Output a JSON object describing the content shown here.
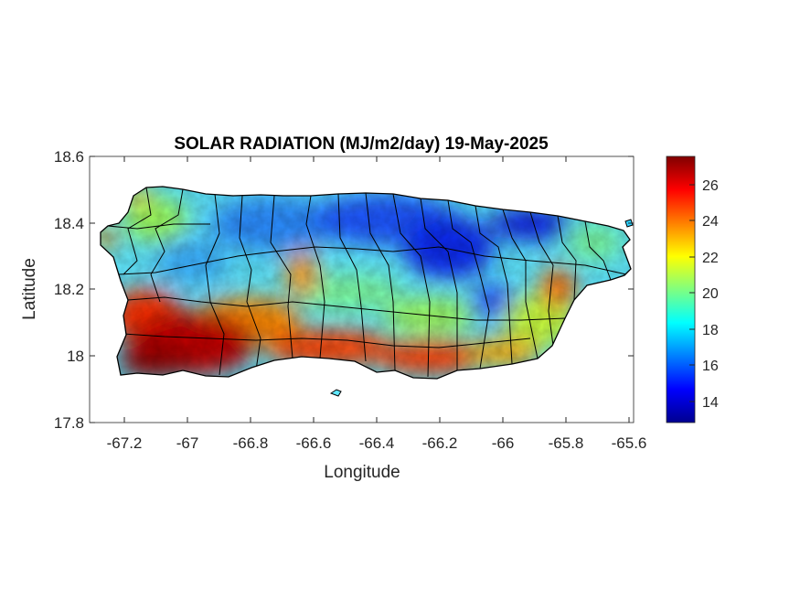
{
  "title": "SOLAR RADIATION (MJ/m2/day) 19-May-2025",
  "xlabel": "Longitude",
  "ylabel": "Latitude",
  "x_ticks": [
    "-67.2",
    "-67",
    "-66.8",
    "-66.6",
    "-66.4",
    "-66.2",
    "-66",
    "-65.8",
    "-65.6"
  ],
  "y_ticks": [
    "18.6",
    "18.4",
    "18.2",
    "18",
    "17.8"
  ],
  "colorbar_ticks": [
    "26",
    "24",
    "22",
    "20",
    "18",
    "16",
    "14"
  ],
  "colormap": "jet",
  "outline_color": "#000000",
  "map_data": {
    "region": "Puerto Rico",
    "lon_range": [
      -67.3,
      -65.59
    ],
    "lat_range": [
      17.8,
      18.6
    ],
    "variable": "solar radiation (MJ/m2/day)",
    "color_range": [
      12.8,
      27.6
    ],
    "pattern": "highest values (26-27) along the southwest coast; high values (23-26) along the southern coast; lowest values (13-16) in the north-central and northeast interior near the coast; intermediate values (17-21) across the central interior and east"
  }
}
